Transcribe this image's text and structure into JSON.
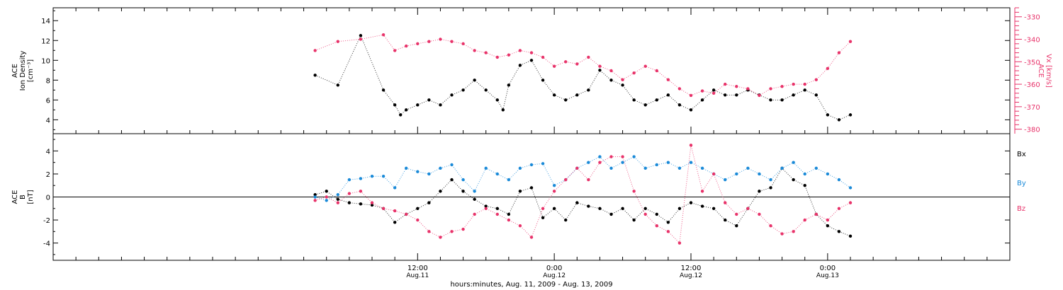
{
  "colors": {
    "black": "#000000",
    "pink": "#e8336a",
    "blue": "#1a8ad8"
  },
  "x_axis": {
    "title": "hours:minutes, Aug. 11, 2009 - Aug. 13, 2009",
    "range_hours": [
      -20,
      64
    ],
    "major_ticks": [
      {
        "hours": 12,
        "time": "12:00",
        "date": "Aug.11"
      },
      {
        "hours": 24,
        "time": "0:00",
        "date": "Aug.12"
      },
      {
        "hours": 36,
        "time": "12:00",
        "date": "Aug.12"
      },
      {
        "hours": 48,
        "time": "0:00",
        "date": "Aug.13"
      }
    ],
    "minor_tick_step_hours": 2
  },
  "chart_data": [
    {
      "type": "scatter",
      "title": "",
      "ylabel_lines": [
        "ACE",
        "Ion Density",
        "[cm⁻³]"
      ],
      "ylim": [
        2.6,
        15.3
      ],
      "yticks": [
        4,
        6,
        8,
        10,
        12,
        14
      ],
      "y2label_lines": [
        "ACE",
        "Vx [km/s]"
      ],
      "y2lim": [
        -382,
        -326
      ],
      "y2ticks": [
        -330,
        -340,
        -350,
        -360,
        -370,
        -380
      ],
      "grid": false,
      "series": [
        {
          "axis": "left",
          "color": "black",
          "x_hours": [
            3,
            5,
            7,
            9,
            10,
            10.5,
            11,
            12,
            13,
            14,
            15,
            16,
            17,
            18,
            19,
            19.5,
            20,
            21,
            22,
            23,
            24,
            25,
            26,
            27,
            28,
            29,
            30,
            31,
            32,
            33,
            34,
            35,
            36,
            37,
            38,
            39,
            40,
            41,
            42,
            43,
            44,
            45,
            46,
            47,
            48,
            49,
            50
          ],
          "values": [
            8.5,
            7.5,
            12.5,
            7.0,
            5.5,
            4.5,
            5.0,
            5.5,
            6.0,
            5.5,
            6.5,
            7.0,
            8.0,
            7.0,
            6.0,
            5.0,
            7.5,
            9.5,
            10.0,
            8.0,
            6.5,
            6.0,
            6.5,
            7.0,
            9.0,
            8.0,
            7.5,
            6.0,
            5.5,
            6.0,
            6.5,
            5.5,
            5.0,
            6.0,
            7.0,
            6.5,
            6.5,
            7.0,
            6.5,
            6.0,
            6.0,
            6.5,
            7.0,
            6.5,
            4.5,
            4.0,
            4.5
          ]
        },
        {
          "axis": "right",
          "color": "pink",
          "x_hours": [
            3,
            5,
            7,
            9,
            10,
            11,
            12,
            13,
            14,
            15,
            16,
            17,
            18,
            19,
            20,
            21,
            22,
            23,
            24,
            25,
            26,
            27,
            28,
            29,
            30,
            31,
            32,
            33,
            34,
            35,
            36,
            37,
            38,
            39,
            40,
            41,
            42,
            43,
            44,
            45,
            46,
            47,
            48,
            49,
            50
          ],
          "values": [
            -345,
            -341,
            -340,
            -338,
            -345,
            -343,
            -342,
            -341,
            -340,
            -341,
            -342,
            -345,
            -346,
            -348,
            -347,
            -345,
            -346,
            -348,
            -352,
            -350,
            -351,
            -348,
            -352,
            -354,
            -358,
            -355,
            -352,
            -354,
            -358,
            -362,
            -365,
            -363,
            -364,
            -360,
            -361,
            -362,
            -365,
            -362,
            -361,
            -360,
            -360,
            -358,
            -353,
            -346,
            -341
          ]
        }
      ]
    },
    {
      "type": "scatter",
      "title": "",
      "ylabel_lines": [
        "ACE",
        "B",
        "[nT]"
      ],
      "ylim": [
        -5.5,
        5.5
      ],
      "yticks": [
        -4,
        -2,
        0,
        2,
        4
      ],
      "grid": false,
      "zero_line": true,
      "legend_position": "right",
      "series": [
        {
          "name": "Bx",
          "color": "black",
          "x_hours": [
            3,
            4,
            5,
            6,
            7,
            8,
            9,
            10,
            11,
            12,
            13,
            14,
            15,
            16,
            17,
            18,
            19,
            20,
            21,
            22,
            23,
            24,
            25,
            26,
            27,
            28,
            29,
            30,
            31,
            32,
            33,
            34,
            35,
            36,
            37,
            38,
            39,
            40,
            41,
            42,
            43,
            44,
            45,
            46,
            47,
            48,
            49,
            50
          ],
          "values": [
            0.2,
            0.5,
            -0.2,
            -0.5,
            -0.6,
            -0.7,
            -1.0,
            -2.2,
            -1.5,
            -1.0,
            -0.5,
            0.5,
            1.5,
            0.5,
            -0.2,
            -0.8,
            -1.0,
            -1.5,
            0.5,
            0.8,
            -1.8,
            -1.0,
            -2.0,
            -0.5,
            -0.8,
            -1.0,
            -1.5,
            -1.0,
            -2.0,
            -1.0,
            -1.5,
            -2.2,
            -1.0,
            -0.5,
            -0.8,
            -1.0,
            -2.0,
            -2.5,
            -1.0,
            0.5,
            0.8,
            2.5,
            1.5,
            1.0,
            -1.5,
            -2.5,
            -3.0,
            -3.4
          ]
        },
        {
          "name": "By",
          "color": "blue",
          "x_hours": [
            3,
            4,
            5,
            6,
            7,
            8,
            9,
            10,
            11,
            12,
            13,
            14,
            15,
            16,
            17,
            18,
            19,
            20,
            21,
            22,
            23,
            24,
            25,
            26,
            27,
            28,
            29,
            30,
            31,
            32,
            33,
            34,
            35,
            36,
            37,
            38,
            39,
            40,
            41,
            42,
            43,
            44,
            45,
            46,
            47,
            48,
            49,
            50
          ],
          "values": [
            0.0,
            -0.3,
            0.2,
            1.5,
            1.6,
            1.8,
            1.8,
            0.8,
            2.5,
            2.2,
            2.0,
            2.5,
            2.8,
            1.5,
            0.5,
            2.5,
            2.0,
            1.5,
            2.5,
            2.8,
            2.9,
            1.0,
            1.5,
            2.5,
            3.0,
            3.5,
            2.5,
            3.0,
            3.5,
            2.5,
            2.8,
            3.0,
            2.5,
            3.0,
            2.5,
            2.0,
            1.5,
            2.0,
            2.5,
            2.0,
            1.5,
            2.5,
            3.0,
            2.0,
            2.5,
            2.0,
            1.5,
            0.8
          ]
        },
        {
          "name": "Bz",
          "color": "pink",
          "x_hours": [
            3,
            4,
            5,
            6,
            7,
            8,
            9,
            10,
            11,
            12,
            13,
            14,
            15,
            16,
            17,
            18,
            19,
            20,
            21,
            22,
            23,
            24,
            25,
            26,
            27,
            28,
            29,
            30,
            31,
            32,
            33,
            34,
            35,
            36,
            37,
            38,
            39,
            40,
            41,
            42,
            43,
            44,
            45,
            46,
            47,
            48,
            49,
            50
          ],
          "values": [
            -0.3,
            0.0,
            -0.5,
            0.3,
            0.5,
            -0.5,
            -1.0,
            -1.2,
            -1.5,
            -2.0,
            -3.0,
            -3.5,
            -3.0,
            -2.8,
            -1.5,
            -1.0,
            -1.5,
            -2.0,
            -2.5,
            -3.5,
            -1.0,
            0.5,
            1.5,
            2.5,
            1.5,
            3.0,
            3.5,
            3.5,
            0.5,
            -1.5,
            -2.5,
            -3.0,
            -4.0,
            4.5,
            0.5,
            2.0,
            -0.5,
            -1.5,
            -1.0,
            -1.5,
            -2.5,
            -3.2,
            -3.0,
            -2.0,
            -1.5,
            -2.0,
            -1.0,
            -0.5
          ]
        }
      ]
    }
  ]
}
